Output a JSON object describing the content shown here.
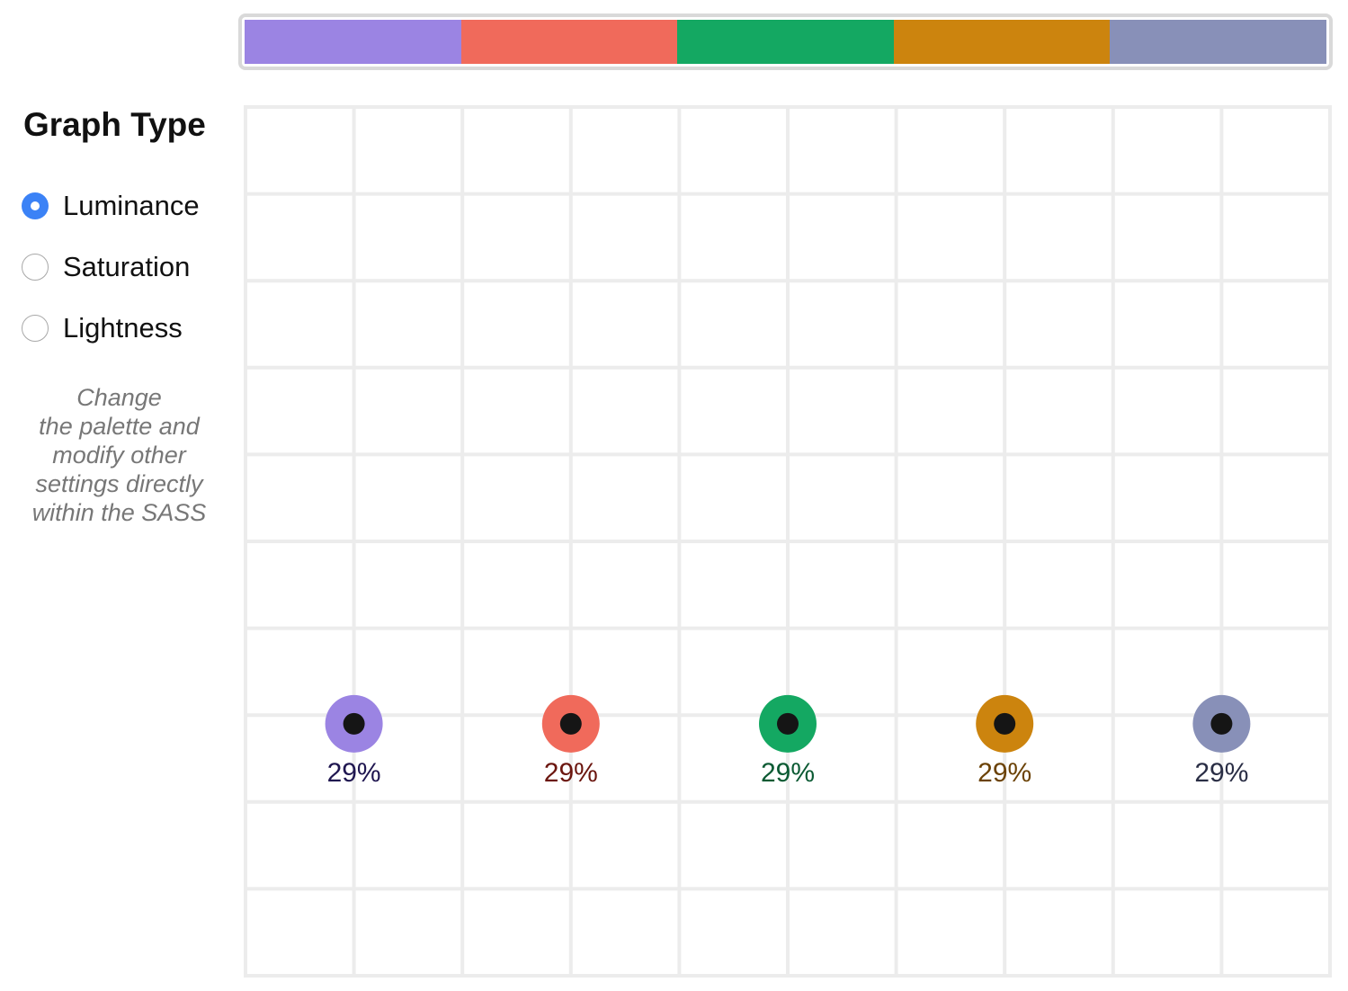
{
  "palette": [
    {
      "color": "#9b84e3"
    },
    {
      "color": "#f06a5b"
    },
    {
      "color": "#14a862"
    },
    {
      "color": "#cc840e"
    },
    {
      "color": "#8890b8"
    }
  ],
  "sidebar": {
    "title": "Graph Type",
    "options": [
      {
        "label": "Luminance",
        "checked": true
      },
      {
        "label": "Saturation",
        "checked": false
      },
      {
        "label": "Lightness",
        "checked": false
      }
    ],
    "note_lines": [
      "Change",
      "the palette and",
      "modify other",
      "settings directly",
      "within the SASS"
    ]
  },
  "chart_data": {
    "type": "scatter",
    "metric": "Luminance",
    "ylim": [
      0,
      100
    ],
    "grid": true,
    "points": [
      {
        "color": "#9b84e3",
        "value": 29,
        "label": "29%",
        "text_color": "#1f1650"
      },
      {
        "color": "#f06a5b",
        "value": 29,
        "label": "29%",
        "text_color": "#6b160f"
      },
      {
        "color": "#14a862",
        "value": 29,
        "label": "29%",
        "text_color": "#0b5a33"
      },
      {
        "color": "#cc840e",
        "value": 29,
        "label": "29%",
        "text_color": "#6b4206"
      },
      {
        "color": "#8890b8",
        "value": 29,
        "label": "29%",
        "text_color": "#2a2e45"
      }
    ]
  }
}
